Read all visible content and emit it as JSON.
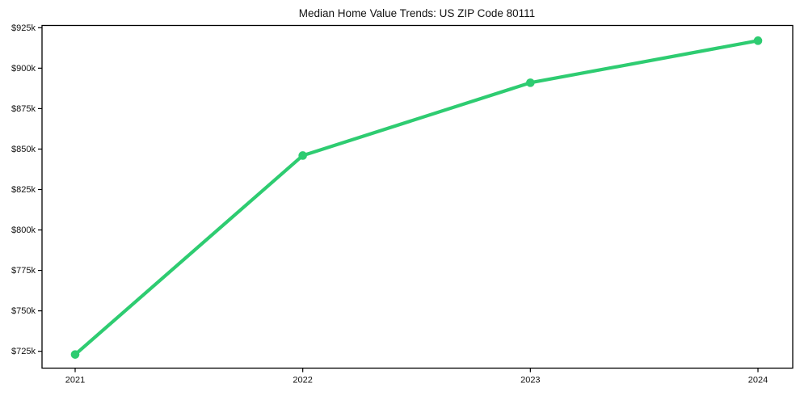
{
  "chart_data": {
    "type": "line",
    "title": "Median Home Value Trends: US ZIP Code 80111",
    "xlabel": "",
    "ylabel": "",
    "categories": [
      "2021",
      "2022",
      "2023",
      "2024"
    ],
    "series": [
      {
        "name": "Median Home Value",
        "values": [
          723000,
          846000,
          891000,
          917000
        ]
      }
    ],
    "y_ticks": {
      "values": [
        925000,
        900000,
        875000,
        850000,
        825000,
        800000,
        775000,
        750000,
        725000
      ],
      "labels": [
        "$925k",
        "$900k",
        "$875k",
        "$850k",
        "$825k",
        "$800k",
        "$775k",
        "$750k",
        "$725k"
      ]
    },
    "ylim": [
      714600,
      926400
    ],
    "grid": false,
    "legend": "none",
    "line_color": "#2ecc71",
    "marker_color": "#2ecc71",
    "marker_shape": "circle",
    "axis_color": "#000000",
    "text_color": "#111111",
    "background_color": "#ffffff"
  }
}
